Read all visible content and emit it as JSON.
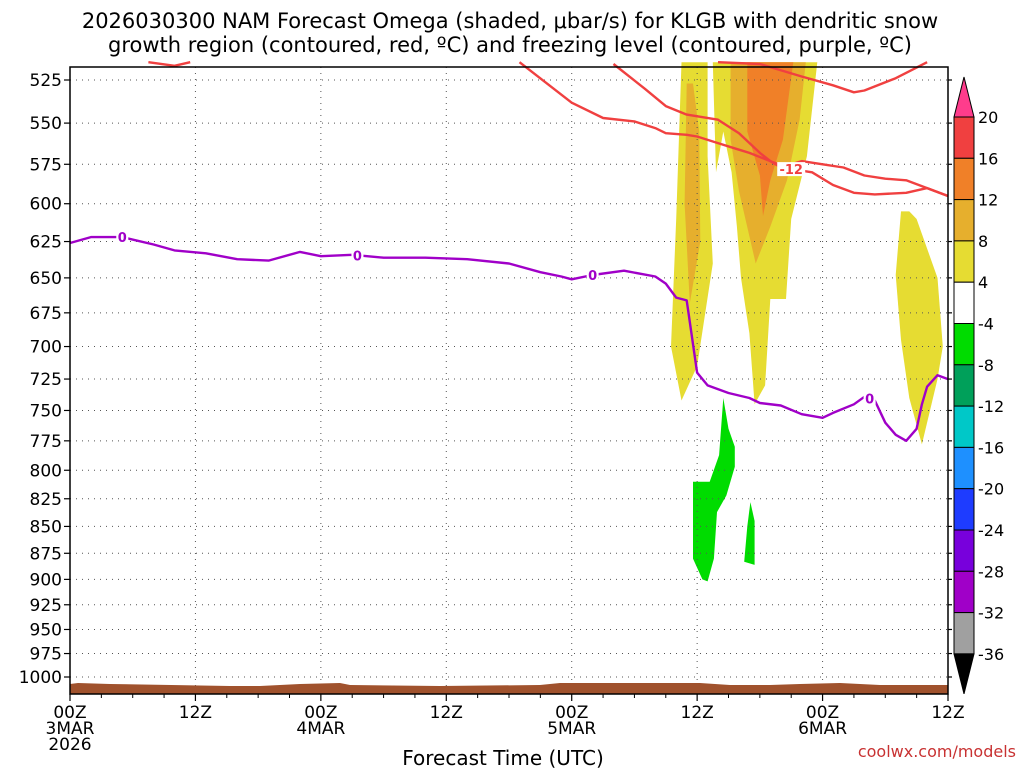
{
  "chart_data": {
    "type": "heatmap",
    "title_lines": [
      "2026030300 NAM Forecast Omega (shaded, μbar/s) for KLGB with dendritic snow",
      "growth region (contoured, red, ºC) and freezing level (contoured, purple, ºC)"
    ],
    "xlabel": "Forecast Time (UTC)",
    "credit": "coolwx.com/models",
    "x_unit": "hours from 2026-03-03 00Z",
    "xlim": [
      0,
      84
    ],
    "y_unit": "pressure (mb)",
    "ylim": [
      1010,
      515
    ],
    "yticks": [
      525,
      550,
      575,
      600,
      625,
      650,
      675,
      700,
      725,
      750,
      775,
      800,
      825,
      850,
      875,
      900,
      925,
      950,
      975,
      1000
    ],
    "xticks": [
      {
        "h": 0,
        "lines": [
          "00Z",
          "3MAR",
          "2026"
        ]
      },
      {
        "h": 12,
        "lines": [
          "12Z"
        ]
      },
      {
        "h": 24,
        "lines": [
          "00Z",
          "4MAR"
        ]
      },
      {
        "h": 36,
        "lines": [
          "12Z"
        ]
      },
      {
        "h": 48,
        "lines": [
          "00Z",
          "5MAR"
        ]
      },
      {
        "h": 60,
        "lines": [
          "12Z"
        ]
      },
      {
        "h": 72,
        "lines": [
          "00Z",
          "6MAR"
        ]
      },
      {
        "h": 84,
        "lines": [
          "12Z"
        ]
      }
    ],
    "colorbar": {
      "labels": [
        "20",
        "16",
        "12",
        "8",
        "4",
        "-4",
        "-8",
        "-12",
        "-16",
        "-20",
        "-24",
        "-28",
        "-32",
        "-36"
      ],
      "colors": [
        "#ff3c8c",
        "#f04040",
        "#f08028",
        "#e6af2d",
        "#e6dc32",
        "#ffffff",
        "#00dc00",
        "#00a05a",
        "#00c8c8",
        "#1e90ff",
        "#1e3cff",
        "#7800dc",
        "#a000c8",
        "#a0a0a0",
        "#000000"
      ]
    },
    "series": [
      {
        "name": "freezing level 0ºC",
        "color": "#a000c8",
        "label": "0",
        "label_at_h": [
          5,
          27.5,
          50,
          76.5
        ],
        "points": [
          [
            0,
            626
          ],
          [
            2,
            622
          ],
          [
            5,
            622
          ],
          [
            8,
            627
          ],
          [
            10,
            631
          ],
          [
            13,
            633
          ],
          [
            16,
            637
          ],
          [
            19,
            638
          ],
          [
            22,
            632
          ],
          [
            24,
            635
          ],
          [
            27,
            634
          ],
          [
            30,
            636
          ],
          [
            34,
            636
          ],
          [
            38,
            637
          ],
          [
            42,
            640
          ],
          [
            45,
            646
          ],
          [
            47,
            649
          ],
          [
            48,
            651
          ],
          [
            50,
            648
          ],
          [
            53,
            645
          ],
          [
            56,
            649
          ],
          [
            57,
            654
          ],
          [
            58,
            664
          ],
          [
            59,
            666
          ],
          [
            60,
            720
          ],
          [
            61,
            730
          ],
          [
            63,
            736
          ],
          [
            65,
            740
          ],
          [
            66,
            744
          ],
          [
            68,
            746
          ],
          [
            70,
            753
          ],
          [
            72,
            756
          ],
          [
            73,
            752
          ],
          [
            75,
            745
          ],
          [
            76,
            739
          ],
          [
            77,
            742
          ],
          [
            78,
            760
          ],
          [
            79,
            770
          ],
          [
            80,
            775
          ],
          [
            81,
            765
          ],
          [
            81.5,
            745
          ],
          [
            82,
            731
          ],
          [
            83,
            722
          ],
          [
            84,
            725
          ]
        ]
      },
      {
        "name": "dendritic -12ºC upper",
        "color": "#f04040",
        "label": "",
        "label_at_h": [],
        "points": [
          [
            43,
            515
          ],
          [
            48,
            538
          ],
          [
            51,
            547
          ],
          [
            54,
            549
          ],
          [
            56,
            553
          ],
          [
            57,
            556
          ],
          [
            59,
            557
          ],
          [
            60,
            558
          ],
          [
            62,
            562
          ],
          [
            64,
            566
          ],
          [
            65,
            568
          ],
          [
            67,
            573
          ],
          [
            68,
            577
          ],
          [
            70,
            573
          ],
          [
            72,
            575
          ],
          [
            74,
            577
          ],
          [
            76,
            582
          ],
          [
            78,
            584
          ],
          [
            80,
            585
          ],
          [
            82,
            590
          ],
          [
            84,
            595
          ]
        ]
      },
      {
        "name": "dendritic -12ºC lower",
        "color": "#f04040",
        "label": "-12",
        "label_at_h": [
          69
        ],
        "points": [
          [
            52,
            516
          ],
          [
            55,
            530
          ],
          [
            57,
            540
          ],
          [
            59,
            545
          ],
          [
            62,
            548
          ],
          [
            63,
            552
          ],
          [
            64,
            556
          ],
          [
            66,
            568
          ],
          [
            67,
            573
          ],
          [
            69,
            578
          ],
          [
            71,
            580
          ],
          [
            73,
            588
          ],
          [
            75,
            593
          ],
          [
            77,
            594
          ],
          [
            80,
            593
          ],
          [
            82,
            590
          ],
          [
            84,
            595
          ]
        ]
      },
      {
        "name": "dendritic -12ºC top right",
        "color": "#f04040",
        "label": "",
        "label_at_h": [],
        "points": [
          [
            62,
            515
          ],
          [
            66,
            516
          ],
          [
            70,
            523
          ],
          [
            73,
            528
          ],
          [
            75,
            532
          ],
          [
            76,
            531
          ],
          [
            79,
            524
          ],
          [
            81,
            518
          ],
          [
            82,
            515
          ]
        ]
      },
      {
        "name": "dendritic -12ºC top left",
        "color": "#f04040",
        "label": "",
        "label_at_h": [],
        "points": [
          [
            7.5,
            515
          ],
          [
            10,
            517
          ],
          [
            11.5,
            515
          ]
        ]
      }
    ],
    "shaded": [
      {
        "level": "4",
        "color": "#e6dc32",
        "points": [
          [
            58.5,
            515
          ],
          [
            58,
            610
          ],
          [
            57.5,
            700
          ],
          [
            58.5,
            742
          ],
          [
            60,
            715
          ],
          [
            61.5,
            640
          ],
          [
            61,
            570
          ],
          [
            61,
            515
          ]
        ]
      },
      {
        "level": "8",
        "color": "#e6af2d",
        "points": [
          [
            59,
            527
          ],
          [
            58.8,
            600
          ],
          [
            59.3,
            668
          ],
          [
            60.3,
            625
          ],
          [
            60.2,
            555
          ],
          [
            59.6,
            527
          ]
        ]
      },
      {
        "level": "4",
        "color": "#e6dc32",
        "points": [
          [
            61.5,
            515
          ],
          [
            61.8,
            580
          ],
          [
            62.5,
            555
          ],
          [
            63.3,
            580
          ],
          [
            63.8,
            615
          ],
          [
            64.2,
            650
          ],
          [
            65,
            690
          ],
          [
            65.5,
            745
          ],
          [
            66.5,
            730
          ],
          [
            67,
            665
          ],
          [
            68.5,
            665
          ],
          [
            69,
            610
          ],
          [
            70.5,
            570
          ],
          [
            71.5,
            515
          ]
        ]
      },
      {
        "level": "8",
        "color": "#e6af2d",
        "points": [
          [
            63.2,
            515
          ],
          [
            63.2,
            560
          ],
          [
            64,
            592
          ],
          [
            65.6,
            640
          ],
          [
            67,
            615
          ],
          [
            68.6,
            585
          ],
          [
            69.8,
            548
          ],
          [
            70.4,
            515
          ]
        ]
      },
      {
        "level": "12",
        "color": "#f08028",
        "points": [
          [
            64.8,
            515
          ],
          [
            64.8,
            555
          ],
          [
            66,
            582
          ],
          [
            66.3,
            608
          ],
          [
            67,
            585
          ],
          [
            68.2,
            560
          ],
          [
            69.2,
            515
          ]
        ]
      },
      {
        "level": "4",
        "color": "#e6dc32",
        "points": [
          [
            79.5,
            605
          ],
          [
            79,
            648
          ],
          [
            79.5,
            695
          ],
          [
            80.3,
            740
          ],
          [
            81.5,
            778
          ],
          [
            83,
            725
          ],
          [
            83.5,
            700
          ],
          [
            83,
            650
          ],
          [
            81,
            610
          ],
          [
            80.3,
            605
          ]
        ]
      },
      {
        "level": "-4",
        "color": "#00dc00",
        "points": [
          [
            62.5,
            740
          ],
          [
            62.1,
            787
          ],
          [
            61.2,
            810
          ],
          [
            59.6,
            810
          ],
          [
            59.6,
            880
          ],
          [
            60.5,
            900
          ],
          [
            61,
            902
          ],
          [
            61.6,
            880
          ],
          [
            61.9,
            837
          ],
          [
            62.8,
            822
          ],
          [
            63.6,
            797
          ],
          [
            63.6,
            780
          ],
          [
            63,
            765
          ]
        ]
      },
      {
        "level": "-4",
        "color": "#00dc00",
        "points": [
          [
            65.1,
            828
          ],
          [
            64.8,
            850
          ],
          [
            64.5,
            883
          ],
          [
            65.5,
            886
          ],
          [
            65.5,
            845
          ]
        ]
      }
    ]
  }
}
